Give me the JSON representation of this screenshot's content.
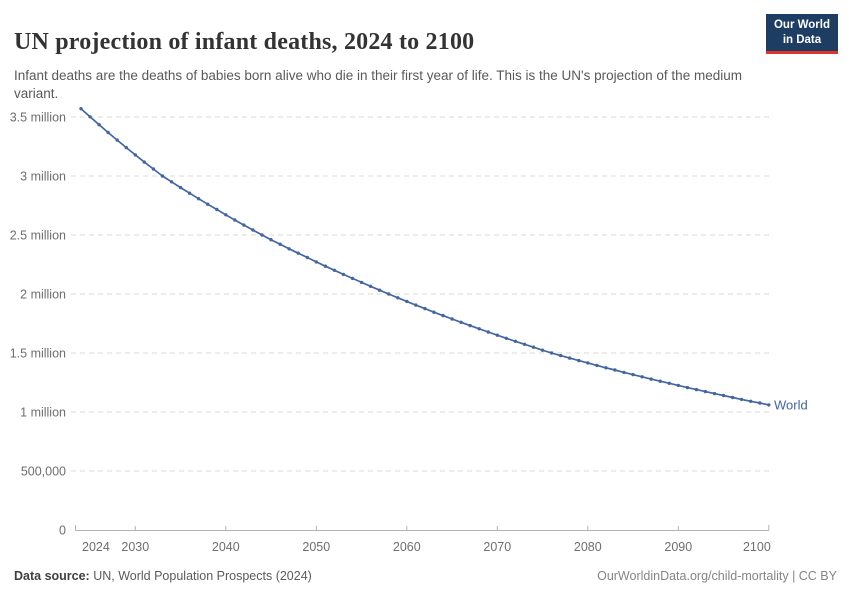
{
  "header": {
    "title": "UN projection of infant deaths, 2024 to 2100",
    "subtitle": "Infant deaths are the deaths of babies born alive who die in their first year of life. This is the UN's projection of the medium variant."
  },
  "logo": {
    "line1": "Our World",
    "line2": "in Data",
    "bg": "#1d3d63",
    "accent": "#dc352b"
  },
  "chart_data": {
    "type": "line",
    "title": "UN projection of infant deaths, 2024 to 2100",
    "unit": "infant deaths per year (millions)",
    "xlabel": "",
    "ylabel": "",
    "xlim": [
      2024,
      2100
    ],
    "ylim": [
      0,
      3.57
    ],
    "grid": "horizontal-dashed",
    "legend": "end-of-line-label",
    "x_ticks": [
      2024,
      2030,
      2040,
      2050,
      2060,
      2070,
      2080,
      2090,
      2100
    ],
    "y_ticks": [
      {
        "value": 0,
        "label": "0"
      },
      {
        "value": 0.5,
        "label": "500,000"
      },
      {
        "value": 1,
        "label": "1 million"
      },
      {
        "value": 1.5,
        "label": "1.5 million"
      },
      {
        "value": 2,
        "label": "2 million"
      },
      {
        "value": 2.5,
        "label": "2.5 million"
      },
      {
        "value": 3,
        "label": "3 million"
      },
      {
        "value": 3.5,
        "label": "3.5 million"
      }
    ],
    "series": [
      {
        "name": "World",
        "color": "#44669f",
        "years": [
          2024,
          2025,
          2026,
          2027,
          2028,
          2029,
          2030,
          2031,
          2032,
          2033,
          2034,
          2035,
          2036,
          2037,
          2038,
          2039,
          2040,
          2041,
          2042,
          2043,
          2044,
          2045,
          2046,
          2047,
          2048,
          2049,
          2050,
          2051,
          2052,
          2053,
          2054,
          2055,
          2056,
          2057,
          2058,
          2059,
          2060,
          2061,
          2062,
          2063,
          2064,
          2065,
          2066,
          2067,
          2068,
          2069,
          2070,
          2071,
          2072,
          2073,
          2074,
          2075,
          2076,
          2077,
          2078,
          2079,
          2080,
          2081,
          2082,
          2083,
          2084,
          2085,
          2086,
          2087,
          2088,
          2089,
          2090,
          2091,
          2092,
          2093,
          2094,
          2095,
          2096,
          2097,
          2098,
          2099,
          2100
        ],
        "values": [
          3.57,
          3.502,
          3.435,
          3.369,
          3.304,
          3.241,
          3.179,
          3.118,
          3.059,
          3.0,
          2.951,
          2.902,
          2.854,
          2.808,
          2.761,
          2.716,
          2.671,
          2.627,
          2.584,
          2.542,
          2.5,
          2.46,
          2.422,
          2.383,
          2.346,
          2.309,
          2.272,
          2.236,
          2.201,
          2.166,
          2.132,
          2.098,
          2.065,
          2.032,
          2.0,
          1.968,
          1.937,
          1.906,
          1.876,
          1.846,
          1.817,
          1.788,
          1.76,
          1.732,
          1.705,
          1.678,
          1.651,
          1.625,
          1.599,
          1.574,
          1.549,
          1.524,
          1.5,
          1.478,
          1.457,
          1.436,
          1.416,
          1.395,
          1.375,
          1.356,
          1.336,
          1.317,
          1.298,
          1.279,
          1.261,
          1.243,
          1.225,
          1.207,
          1.19,
          1.173,
          1.156,
          1.14,
          1.123,
          1.107,
          1.091,
          1.076,
          1.06
        ]
      }
    ]
  },
  "footer": {
    "source_label": "Data source:",
    "source_text": " UN, World Population Prospects (2024)",
    "right_text": "OurWorldinData.org/child-mortality | CC BY"
  },
  "colors": {
    "line": "#44669f",
    "grid": "#dadada",
    "axis": "#b3b3b3",
    "tick_text": "#6e6e6e"
  }
}
